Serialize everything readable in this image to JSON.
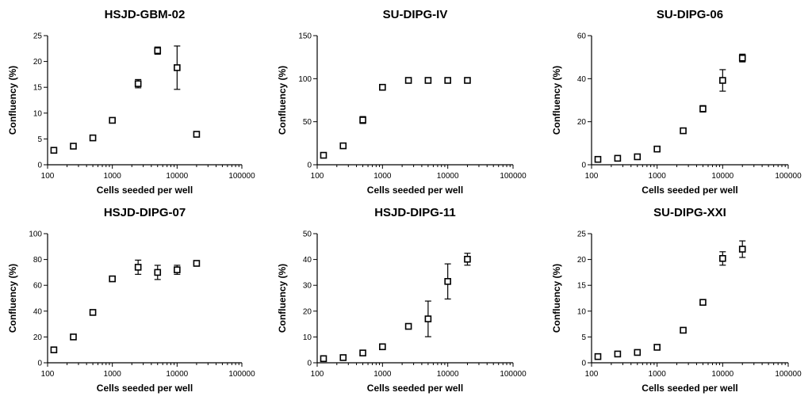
{
  "chart_data": [
    {
      "type": "scatter",
      "title": "HSJD-GBM-02",
      "xlabel": "Cells seeded per well",
      "ylabel": "Confluency (%)",
      "xscale": "log",
      "xlim": [
        100,
        100000
      ],
      "xticks": [
        "100",
        "1000",
        "10000",
        "100000"
      ],
      "ylim": [
        0,
        25
      ],
      "yticks": [
        "0",
        "5",
        "10",
        "15",
        "20",
        "25"
      ],
      "series": [
        {
          "x": [
            125,
            250,
            500,
            1000,
            2500,
            5000,
            10000,
            20000
          ],
          "y": [
            2.8,
            3.6,
            5.2,
            8.6,
            15.7,
            22.1,
            18.8,
            5.9
          ],
          "err": [
            0.3,
            0.3,
            0.3,
            0.4,
            0.8,
            0.7,
            4.2,
            0.3
          ]
        }
      ]
    },
    {
      "type": "scatter",
      "title": "SU-DIPG-IV",
      "xlabel": "Cells seeded per well",
      "ylabel": "Confluency (%)",
      "xscale": "log",
      "xlim": [
        100,
        100000
      ],
      "xticks": [
        "100",
        "1000",
        "10000",
        "100000"
      ],
      "ylim": [
        0,
        150
      ],
      "yticks": [
        "0",
        "50",
        "100",
        "150"
      ],
      "series": [
        {
          "x": [
            125,
            250,
            500,
            1000,
            2500,
            5000,
            10000,
            20000
          ],
          "y": [
            11,
            22,
            52,
            90,
            98,
            98,
            98,
            98
          ],
          "err": [
            1,
            1,
            4,
            1,
            1,
            1,
            1,
            1
          ]
        }
      ]
    },
    {
      "type": "scatter",
      "title": "SU-DIPG-06",
      "xlabel": "Cells seeded per well",
      "ylabel": "Confluency (%)",
      "xscale": "log",
      "xlim": [
        100,
        100000
      ],
      "xticks": [
        "100",
        "1000",
        "10000",
        "100000"
      ],
      "ylim": [
        0,
        60
      ],
      "yticks": [
        "0",
        "20",
        "40",
        "60"
      ],
      "series": [
        {
          "x": [
            125,
            250,
            500,
            1000,
            2500,
            5000,
            10000,
            20000
          ],
          "y": [
            2.5,
            3.0,
            3.7,
            7.3,
            15.8,
            26.0,
            39.2,
            49.6
          ],
          "err": [
            0.3,
            0.3,
            0.5,
            0.6,
            0.7,
            1.5,
            5.0,
            1.8
          ]
        }
      ]
    },
    {
      "type": "scatter",
      "title": "HSJD-DIPG-07",
      "xlabel": "Cells seeded per well",
      "ylabel": "Confluency (%)",
      "xscale": "log",
      "xlim": [
        100,
        100000
      ],
      "xticks": [
        "100",
        "1000",
        "10000",
        "100000"
      ],
      "ylim": [
        0,
        100
      ],
      "yticks": [
        "0",
        "20",
        "40",
        "60",
        "80",
        "100"
      ],
      "series": [
        {
          "x": [
            125,
            250,
            500,
            1000,
            2500,
            5000,
            10000,
            20000
          ],
          "y": [
            10,
            20,
            39,
            65,
            74,
            70,
            72,
            77
          ],
          "err": [
            0.5,
            0.5,
            0.5,
            1,
            5.5,
            5.5,
            3.5,
            1
          ]
        }
      ]
    },
    {
      "type": "scatter",
      "title": "HSJD-DIPG-11",
      "xlabel": "Cells seeded per well",
      "ylabel": "Confluency (%)",
      "xscale": "log",
      "xlim": [
        100,
        100000
      ],
      "xticks": [
        "100",
        "1000",
        "10000",
        "100000"
      ],
      "ylim": [
        0,
        50
      ],
      "yticks": [
        "0",
        "10",
        "20",
        "30",
        "40",
        "50"
      ],
      "series": [
        {
          "x": [
            125,
            250,
            500,
            1000,
            2500,
            5000,
            10000,
            20000
          ],
          "y": [
            1.6,
            2.0,
            3.8,
            6.2,
            14.1,
            17.0,
            31.5,
            40.1
          ],
          "err": [
            0.3,
            0.3,
            0.3,
            0.4,
            0.5,
            6.9,
            6.8,
            2.3
          ]
        }
      ]
    },
    {
      "type": "scatter",
      "title": "SU-DIPG-XXI",
      "xlabel": "Cells seeded per well",
      "ylabel": "Confluency (%)",
      "xscale": "log",
      "xlim": [
        100,
        100000
      ],
      "xticks": [
        "100",
        "1000",
        "10000",
        "100000"
      ],
      "ylim": [
        0,
        25
      ],
      "yticks": [
        "0",
        "5",
        "10",
        "15",
        "20",
        "25"
      ],
      "series": [
        {
          "x": [
            125,
            250,
            500,
            1000,
            2500,
            5000,
            10000,
            20000
          ],
          "y": [
            1.2,
            1.7,
            2.0,
            3.0,
            6.3,
            11.7,
            20.2,
            22.0
          ],
          "err": [
            0.2,
            0.2,
            0.3,
            0.3,
            0.3,
            0.4,
            1.3,
            1.6
          ]
        }
      ]
    }
  ]
}
